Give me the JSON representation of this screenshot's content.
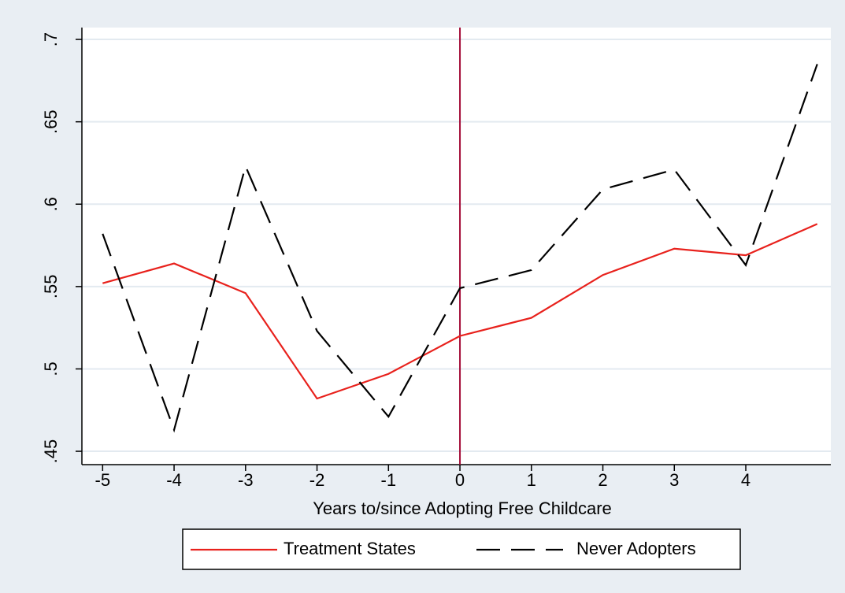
{
  "chart_data": {
    "type": "line",
    "x": [
      -5,
      -4,
      -3,
      -2,
      -1,
      0,
      1,
      2,
      3,
      4,
      5
    ],
    "series": [
      {
        "name": "Treatment States",
        "color": "#e8211c",
        "dash": "solid",
        "values": [
          0.552,
          0.564,
          0.546,
          0.482,
          0.497,
          0.52,
          0.531,
          0.557,
          0.573,
          0.569,
          0.588
        ]
      },
      {
        "name": "Never Adopters",
        "color": "#000000",
        "dash": "dashed",
        "values": [
          0.582,
          0.463,
          0.623,
          0.523,
          0.471,
          0.549,
          0.56,
          0.609,
          0.621,
          0.563,
          0.685
        ]
      }
    ],
    "xlabel": "Years to/since Adopting Free Childcare",
    "xlim": [
      -5.29,
      5.19
    ],
    "xticks": [
      -5,
      -4,
      -3,
      -2,
      -1,
      0,
      1,
      2,
      3,
      4
    ],
    "ylim": [
      0.4419,
      0.7072
    ],
    "yticks": [
      {
        "value": 0.45,
        "label": ".45"
      },
      {
        "value": 0.5,
        "label": ".5"
      },
      {
        "value": 0.55,
        "label": ".55"
      },
      {
        "value": 0.6,
        "label": ".6"
      },
      {
        "value": 0.65,
        "label": ".65"
      },
      {
        "value": 0.7,
        "label": ".7"
      }
    ],
    "grid": true,
    "reference_line": {
      "x": 0,
      "color": "#a50f3a"
    },
    "legend": "bottom"
  }
}
